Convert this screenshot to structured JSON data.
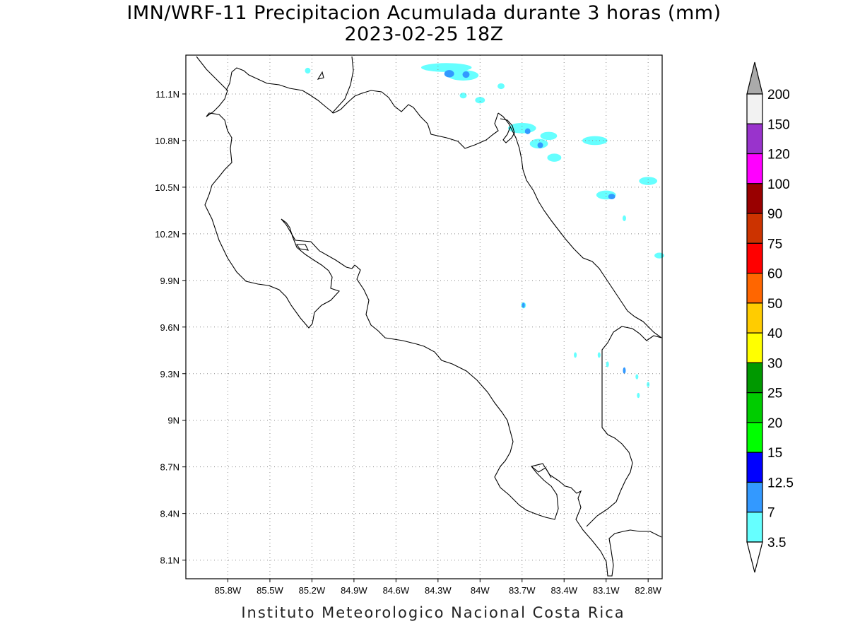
{
  "title": {
    "line1": "IMN/WRF-11 Precipitacion Acumulada durante 3 horas (mm)",
    "line2": "2023-02-25 18Z"
  },
  "credit": "Instituto Meteorologico Nacional Costa Rica",
  "map": {
    "lon_range": [
      -86.1,
      -82.7
    ],
    "lat_range": [
      7.98,
      11.35
    ],
    "lon_ticks": [
      {
        "value": -85.8,
        "label": "85.8W"
      },
      {
        "value": -85.5,
        "label": "85.5W"
      },
      {
        "value": -85.2,
        "label": "85.2W"
      },
      {
        "value": -84.9,
        "label": "84.9W"
      },
      {
        "value": -84.6,
        "label": "84.6W"
      },
      {
        "value": -84.3,
        "label": "84.3W"
      },
      {
        "value": -84.0,
        "label": "84W"
      },
      {
        "value": -83.7,
        "label": "83.7W"
      },
      {
        "value": -83.4,
        "label": "83.4W"
      },
      {
        "value": -83.1,
        "label": "83.1W"
      },
      {
        "value": -82.8,
        "label": "82.8W"
      }
    ],
    "lat_ticks": [
      {
        "value": 11.1,
        "label": "11.1N"
      },
      {
        "value": 10.8,
        "label": "10.8N"
      },
      {
        "value": 10.5,
        "label": "10.5N"
      },
      {
        "value": 10.2,
        "label": "10.2N"
      },
      {
        "value": 9.9,
        "label": "9.9N"
      },
      {
        "value": 9.6,
        "label": "9.6N"
      },
      {
        "value": 9.3,
        "label": "9.3N"
      },
      {
        "value": 9.0,
        "label": "9N"
      },
      {
        "value": 8.7,
        "label": "8.7N"
      },
      {
        "value": 8.4,
        "label": "8.4N"
      },
      {
        "value": 8.1,
        "label": "8.1N"
      }
    ],
    "gridlines": true,
    "precip_areas": [
      {
        "lon": -84.24,
        "lat": 11.27,
        "dlon": 0.36,
        "dlat": 0.03,
        "level": "3.5"
      },
      {
        "lon": -84.12,
        "lat": 11.22,
        "dlon": 0.22,
        "dlat": 0.04,
        "level": "3.5"
      },
      {
        "lon": -84.22,
        "lat": 11.23,
        "dlon": 0.07,
        "dlat": 0.02,
        "level": "7"
      },
      {
        "lon": -84.1,
        "lat": 11.225,
        "dlon": 0.05,
        "dlat": 0.015,
        "level": "7"
      },
      {
        "lon": -85.23,
        "lat": 11.25,
        "dlon": 0.04,
        "dlat": 0.01,
        "level": "3.5"
      },
      {
        "lon": -84.12,
        "lat": 11.09,
        "dlon": 0.05,
        "dlat": 0.01,
        "level": "3.5"
      },
      {
        "lon": -84.0,
        "lat": 11.06,
        "dlon": 0.07,
        "dlat": 0.015,
        "level": "3.5"
      },
      {
        "lon": -83.85,
        "lat": 11.15,
        "dlon": 0.05,
        "dlat": 0.01,
        "level": "3.5"
      },
      {
        "lon": -83.7,
        "lat": 10.88,
        "dlon": 0.2,
        "dlat": 0.04,
        "level": "3.5"
      },
      {
        "lon": -83.51,
        "lat": 10.83,
        "dlon": 0.12,
        "dlat": 0.025,
        "level": "3.5"
      },
      {
        "lon": -83.18,
        "lat": 10.8,
        "dlon": 0.18,
        "dlat": 0.03,
        "level": "3.5"
      },
      {
        "lon": -83.58,
        "lat": 10.78,
        "dlon": 0.13,
        "dlat": 0.035,
        "level": "3.5"
      },
      {
        "lon": -83.47,
        "lat": 10.69,
        "dlon": 0.1,
        "dlat": 0.025,
        "level": "3.5"
      },
      {
        "lon": -83.66,
        "lat": 10.86,
        "dlon": 0.04,
        "dlat": 0.01,
        "level": "7"
      },
      {
        "lon": -83.57,
        "lat": 10.77,
        "dlon": 0.04,
        "dlat": 0.01,
        "level": "7"
      },
      {
        "lon": -83.1,
        "lat": 10.45,
        "dlon": 0.14,
        "dlat": 0.03,
        "level": "3.5"
      },
      {
        "lon": -83.06,
        "lat": 10.44,
        "dlon": 0.05,
        "dlat": 0.008,
        "level": "7"
      },
      {
        "lon": -82.8,
        "lat": 10.54,
        "dlon": 0.13,
        "dlat": 0.025,
        "level": "3.5"
      },
      {
        "lon": -82.97,
        "lat": 10.3,
        "dlon": 0.025,
        "dlat": 0.01,
        "level": "3.5"
      },
      {
        "lon": -82.72,
        "lat": 10.06,
        "dlon": 0.07,
        "dlat": 0.01,
        "level": "3.5"
      },
      {
        "lon": -83.69,
        "lat": 9.74,
        "dlon": 0.035,
        "dlat": 0.012,
        "level": "3.5"
      },
      {
        "lon": -83.69,
        "lat": 9.74,
        "dlon": 0.015,
        "dlat": 0.006,
        "level": "7"
      },
      {
        "lon": -83.32,
        "lat": 9.42,
        "dlon": 0.01,
        "dlat": 0.008,
        "level": "3.5"
      },
      {
        "lon": -83.15,
        "lat": 9.42,
        "dlon": 0.012,
        "dlat": 0.008,
        "level": "3.5"
      },
      {
        "lon": -83.09,
        "lat": 9.36,
        "dlon": 0.015,
        "dlat": 0.01,
        "level": "3.5"
      },
      {
        "lon": -82.97,
        "lat": 9.32,
        "dlon": 0.02,
        "dlat": 0.015,
        "level": "7"
      },
      {
        "lon": -82.88,
        "lat": 9.28,
        "dlon": 0.012,
        "dlat": 0.006,
        "level": "3.5"
      },
      {
        "lon": -82.8,
        "lat": 9.23,
        "dlon": 0.012,
        "dlat": 0.006,
        "level": "3.5"
      },
      {
        "lon": -82.87,
        "lat": 9.16,
        "dlon": 0.008,
        "dlat": 0.006,
        "level": "3.5"
      }
    ]
  },
  "colorbar": {
    "top_color": "#aaaaaa",
    "bottom_color": "#ffffff",
    "bins": [
      {
        "color": "#f2f2f2",
        "label": "200"
      },
      {
        "color": "#9933cc",
        "label": "150"
      },
      {
        "color": "#ff00ff",
        "label": "120"
      },
      {
        "color": "#990000",
        "label": "100"
      },
      {
        "color": "#cc3300",
        "label": "90"
      },
      {
        "color": "#ff0000",
        "label": "75"
      },
      {
        "color": "#ff6600",
        "label": "60"
      },
      {
        "color": "#ffcc00",
        "label": "50"
      },
      {
        "color": "#ffff00",
        "label": "40"
      },
      {
        "color": "#009900",
        "label": "30"
      },
      {
        "color": "#00cc00",
        "label": "25"
      },
      {
        "color": "#00ff00",
        "label": "20"
      },
      {
        "color": "#0000ff",
        "label": "15"
      },
      {
        "color": "#3399ff",
        "label": "12.5"
      },
      {
        "color": "#66ffff",
        "label": "7"
      }
    ],
    "bottom_label": "3.5",
    "level_colors": {
      "3.5": "#66ffff",
      "7": "#3399ff"
    }
  }
}
